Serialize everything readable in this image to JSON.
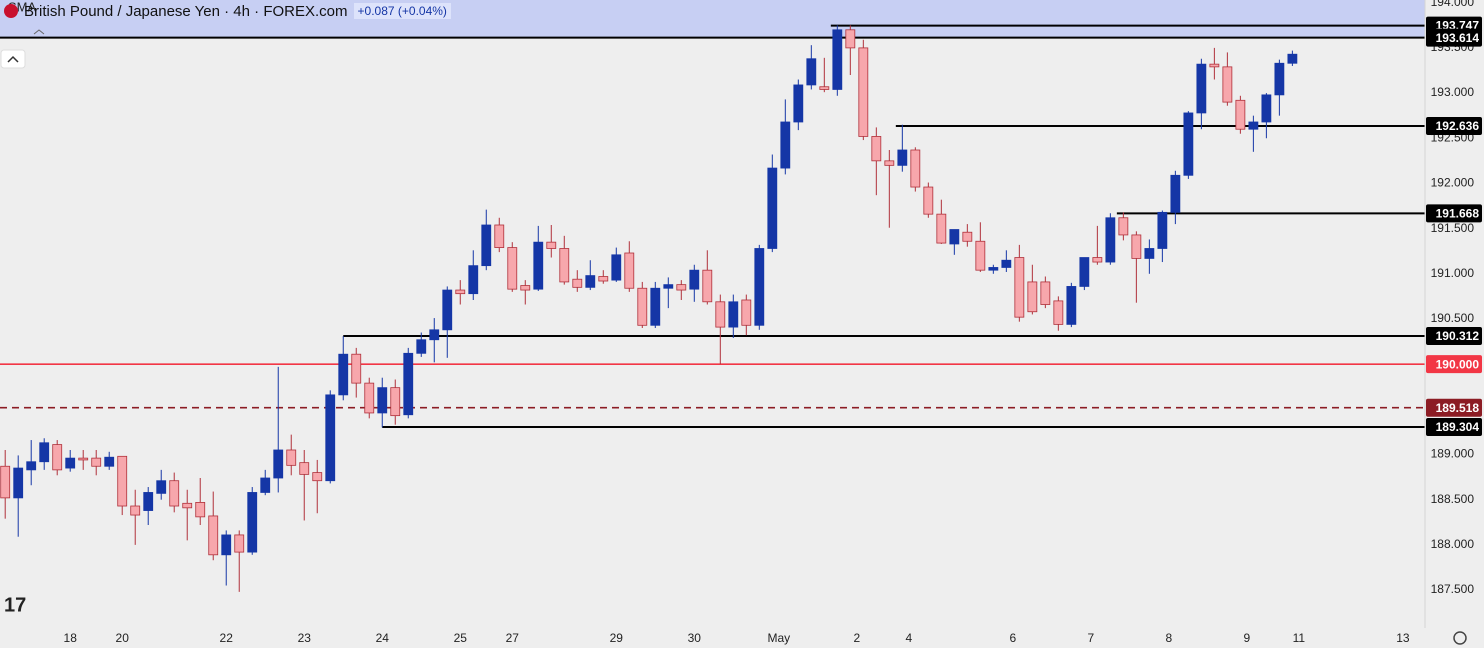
{
  "header": {
    "symbol": "British Pound / Japanese Yen · 4h · FOREX.com",
    "change": "+0.087 (+0.04%)",
    "indicator": "SMA"
  },
  "chart_data": {
    "type": "candlestick",
    "open": [
      188.87,
      188.52,
      188.83,
      188.92,
      189.11,
      188.85,
      188.96,
      188.96,
      188.87,
      188.98,
      188.43,
      188.38,
      188.57,
      188.71,
      188.46,
      188.47,
      188.32,
      187.89,
      188.11,
      187.92,
      188.58,
      188.74,
      189.05,
      188.91,
      188.8,
      188.71,
      189.66,
      190.11,
      189.79,
      189.46,
      189.74,
      189.44,
      190.12,
      190.27,
      190.38,
      190.82,
      190.78,
      191.09,
      191.54,
      191.29,
      190.87,
      190.83,
      191.35,
      191.28,
      190.94,
      190.85,
      190.97,
      190.93,
      191.23,
      190.84,
      190.43,
      190.84,
      190.88,
      190.83,
      191.04,
      190.69,
      190.41,
      190.71,
      190.43,
      191.28,
      192.17,
      192.68,
      193.09,
      193.07,
      193.04,
      193.7,
      193.5,
      192.52,
      192.25,
      192.2,
      192.37,
      191.96,
      191.66,
      191.33,
      191.46,
      191.36,
      191.04,
      191.07,
      191.18,
      190.91,
      190.91,
      190.7,
      190.44,
      190.86,
      191.18,
      191.13,
      191.62,
      191.43,
      191.17,
      191.28,
      191.68,
      192.09,
      192.78,
      193.32,
      193.29,
      192.92,
      192.6,
      192.68,
      192.98,
      193.33
    ],
    "high": [
      189.05,
      188.99,
      189.16,
      189.18,
      189.16,
      189.05,
      189.05,
      189.05,
      189.03,
      188.98,
      188.61,
      188.64,
      188.83,
      188.8,
      188.61,
      188.74,
      188.59,
      188.16,
      188.16,
      188.64,
      188.83,
      189.97,
      189.22,
      189.05,
      188.94,
      189.71,
      190.31,
      190.18,
      189.85,
      189.85,
      189.83,
      190.18,
      190.35,
      190.51,
      190.86,
      190.93,
      191.26,
      191.71,
      191.62,
      191.35,
      190.93,
      191.53,
      191.54,
      191.42,
      191.04,
      191.15,
      191.04,
      191.29,
      191.36,
      190.91,
      190.91,
      190.96,
      190.93,
      191.1,
      191.26,
      190.77,
      190.77,
      190.77,
      191.32,
      192.32,
      192.93,
      193.15,
      193.53,
      193.39,
      193.75,
      193.75,
      193.59,
      192.62,
      192.37,
      192.65,
      192.4,
      192.01,
      191.82,
      191.49,
      191.55,
      191.57,
      191.1,
      191.26,
      191.32,
      191.1,
      190.97,
      190.75,
      190.9,
      191.18,
      191.53,
      191.67,
      191.68,
      191.47,
      191.38,
      191.7,
      192.14,
      192.8,
      193.38,
      193.5,
      193.45,
      192.97,
      192.75,
      193.0,
      193.37,
      193.47
    ],
    "low": [
      188.29,
      188.09,
      188.66,
      188.83,
      188.77,
      188.81,
      188.83,
      188.77,
      188.83,
      188.33,
      188.0,
      188.22,
      188.5,
      188.36,
      188.05,
      188.22,
      187.83,
      187.55,
      187.48,
      187.89,
      188.55,
      188.58,
      188.77,
      188.27,
      188.35,
      188.68,
      189.6,
      189.63,
      189.4,
      189.3,
      189.33,
      189.4,
      190.08,
      190.02,
      190.07,
      190.66,
      190.71,
      191.04,
      191.24,
      190.8,
      190.66,
      190.81,
      191.18,
      190.88,
      190.8,
      190.82,
      190.89,
      190.91,
      190.8,
      190.4,
      190.4,
      190.62,
      190.71,
      190.69,
      190.66,
      190.0,
      190.29,
      190.32,
      190.38,
      191.24,
      192.1,
      192.59,
      193.04,
      193.01,
      192.97,
      193.2,
      192.48,
      191.87,
      191.51,
      192.13,
      191.91,
      191.62,
      191.33,
      191.21,
      191.3,
      191.02,
      191.0,
      191.02,
      190.47,
      190.55,
      190.62,
      190.37,
      190.41,
      190.82,
      191.1,
      191.1,
      191.37,
      190.68,
      191.0,
      191.13,
      191.55,
      192.05,
      192.6,
      193.15,
      192.86,
      192.55,
      192.35,
      192.5,
      192.75,
      193.3
    ],
    "close": [
      188.52,
      188.85,
      188.92,
      189.13,
      188.83,
      188.96,
      188.94,
      188.87,
      188.97,
      188.43,
      188.33,
      188.58,
      188.71,
      188.43,
      188.41,
      188.31,
      187.89,
      188.11,
      187.92,
      188.58,
      188.74,
      189.05,
      188.88,
      188.78,
      188.71,
      189.66,
      190.11,
      189.79,
      189.46,
      189.74,
      189.43,
      190.12,
      190.27,
      190.38,
      190.82,
      190.78,
      191.09,
      191.54,
      191.29,
      190.83,
      190.82,
      191.35,
      191.28,
      190.91,
      190.85,
      190.98,
      190.92,
      191.21,
      190.84,
      190.43,
      190.84,
      190.88,
      190.82,
      191.04,
      190.69,
      190.41,
      190.69,
      190.43,
      191.28,
      192.17,
      192.68,
      193.09,
      193.38,
      193.04,
      193.7,
      193.5,
      192.52,
      192.25,
      192.2,
      192.37,
      191.96,
      191.66,
      191.34,
      191.49,
      191.36,
      191.04,
      191.07,
      191.15,
      190.52,
      190.58,
      190.66,
      190.44,
      190.86,
      191.18,
      191.13,
      191.62,
      191.43,
      191.17,
      191.28,
      191.68,
      192.09,
      192.78,
      193.32,
      193.29,
      192.9,
      192.6,
      192.68,
      192.98,
      193.33,
      193.43
    ],
    "up_color": "#1536a6",
    "down_color": "#f7a7ac",
    "down_border": "#b0303a",
    "ylim": [
      187.08,
      194.03
    ],
    "yticks": [
      {
        "value": 187.5,
        "label": "187.500"
      },
      {
        "value": 188,
        "label": "188.000"
      },
      {
        "value": 188.5,
        "label": "188.500"
      },
      {
        "value": 189,
        "label": "189.000"
      },
      {
        "value": 190.5,
        "label": "190.500"
      },
      {
        "value": 191,
        "label": "191.000"
      },
      {
        "value": 191.5,
        "label": "191.500"
      },
      {
        "value": 192,
        "label": "192.000"
      },
      {
        "value": 192.5,
        "label": "192.500"
      },
      {
        "value": 193,
        "label": "193.000"
      },
      {
        "value": 193.5,
        "label": "193.500"
      },
      {
        "value": 194,
        "label": "194.000"
      }
    ],
    "xlim": [
      -0.4,
      109.2
    ],
    "xticks": [
      {
        "value": 5,
        "label": "18"
      },
      {
        "value": 9,
        "label": "20"
      },
      {
        "value": 17,
        "label": "22"
      },
      {
        "value": 23,
        "label": "23"
      },
      {
        "value": 29,
        "label": "24"
      },
      {
        "value": 35,
        "label": "25"
      },
      {
        "value": 39,
        "label": "27"
      },
      {
        "value": 47,
        "label": "29"
      },
      {
        "value": 53,
        "label": "30"
      },
      {
        "value": 59.5,
        "label": "May"
      },
      {
        "value": 65.5,
        "label": "2"
      },
      {
        "value": 69.5,
        "label": "4"
      },
      {
        "value": 77.5,
        "label": "6"
      },
      {
        "value": 83.5,
        "label": "7"
      },
      {
        "value": 89.5,
        "label": "8"
      },
      {
        "value": 95.5,
        "label": "9"
      },
      {
        "value": 99.5,
        "label": "11"
      },
      {
        "value": 107.5,
        "label": "13"
      }
    ],
    "levels": [
      {
        "value": 193.747,
        "start": 63.5,
        "color": "#000000",
        "style": "solid"
      },
      {
        "value": 193.614,
        "color": "#000000",
        "style": "solid",
        "shade_above": "#c7cff3"
      },
      {
        "value": 192.636,
        "start": 68.5,
        "color": "#000000",
        "style": "solid"
      },
      {
        "value": 191.668,
        "start": 85.5,
        "color": "#000000",
        "style": "solid"
      },
      {
        "value": 190.312,
        "start": 26,
        "color": "#000000",
        "style": "solid"
      },
      {
        "value": 190,
        "label": "190.000",
        "color": "#f23645",
        "style": "solid"
      },
      {
        "value": 189.518,
        "color": "#8c1c24",
        "style": "dashed"
      },
      {
        "value": 189.304,
        "start": 29,
        "color": "#000000",
        "style": "solid"
      }
    ]
  }
}
